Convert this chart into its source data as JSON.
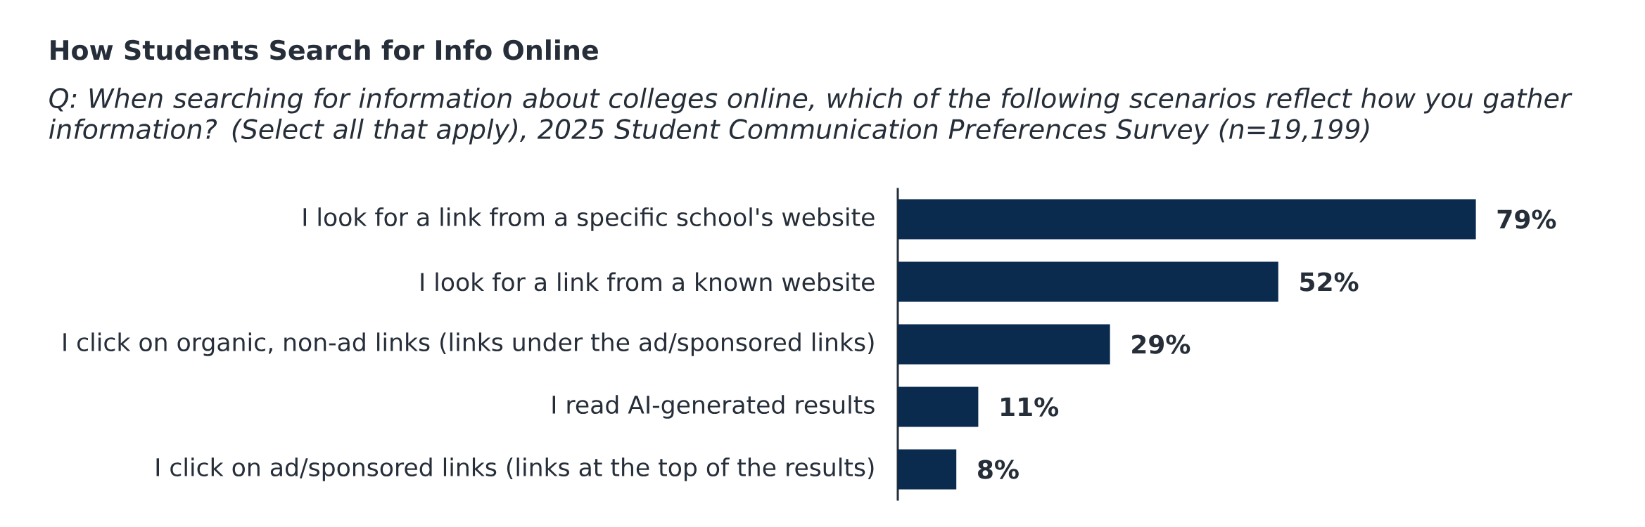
{
  "chart_data": {
    "type": "bar",
    "orientation": "horizontal",
    "title": "How Students Search for Info Online",
    "subtitle": "Q: When searching for information about colleges online, which of the following scenarios reflect how you gather information? (Select all that apply), 2025 Student Communication Preferences Survey (n=19,199)",
    "categories": [
      "I look for a link from a specific school's website",
      "I look for a link from a known website",
      "I click on organic, non-ad links (links under the ad/sponsored links)",
      "I read AI-generated results",
      "I click on ad/sponsored links (links at the top of the results)"
    ],
    "values": [
      79,
      52,
      29,
      11,
      8
    ],
    "value_labels": [
      "79%",
      "52%",
      "29%",
      "11%",
      "8%"
    ],
    "color": "#0a2a4e"
  }
}
